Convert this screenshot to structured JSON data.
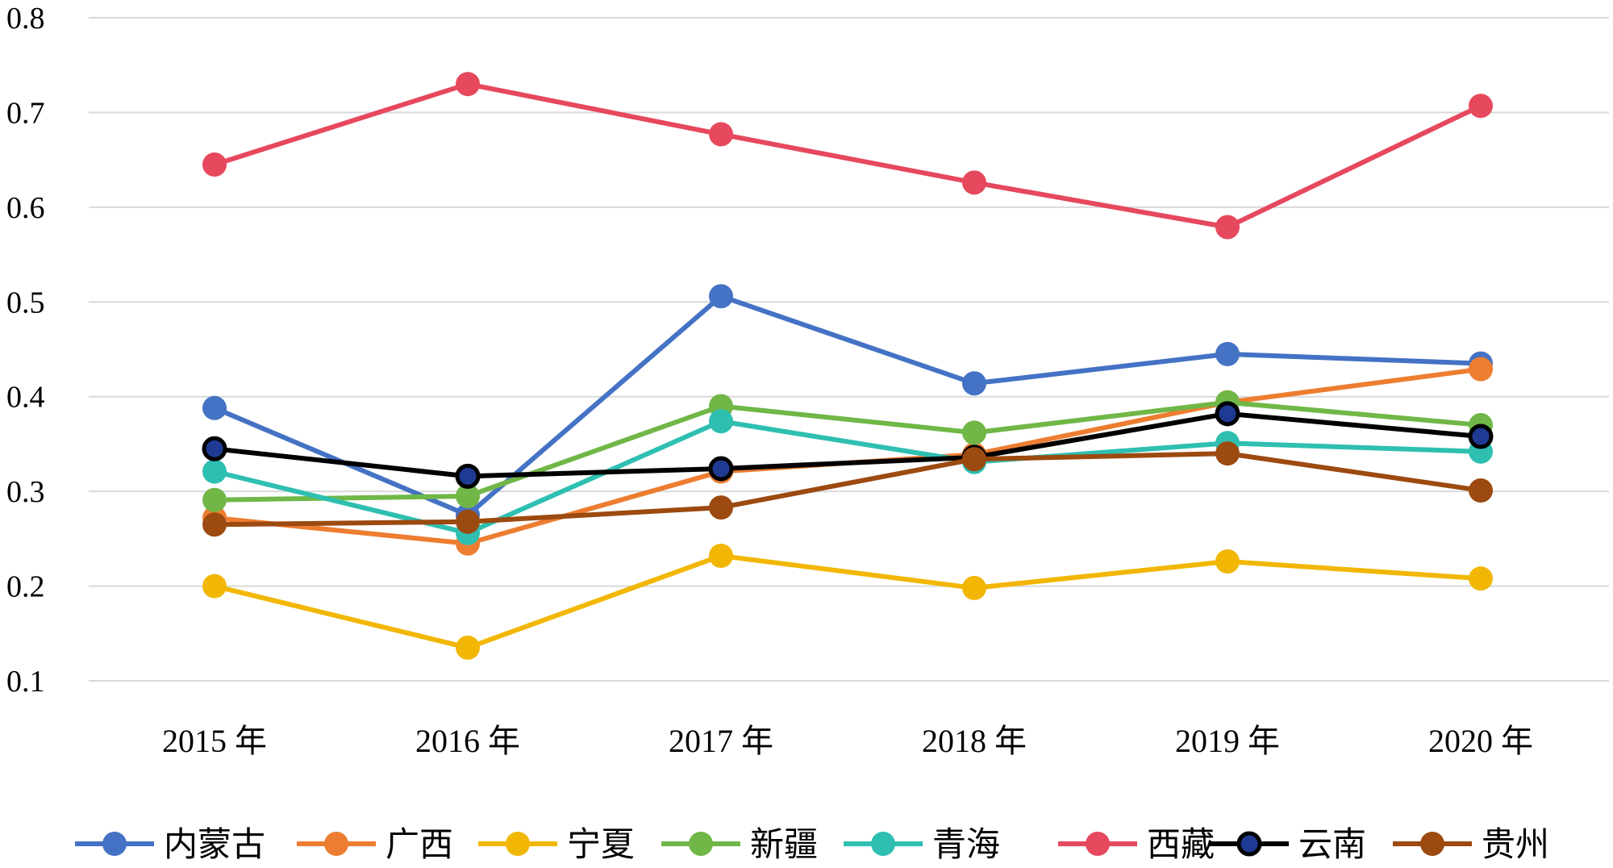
{
  "chart_data": {
    "type": "line",
    "title": "",
    "xlabel": "",
    "ylabel": "",
    "ylim": [
      0.1,
      0.8
    ],
    "yticks": [
      "0.1",
      "0.2",
      "0.3",
      "0.4",
      "0.5",
      "0.6",
      "0.7",
      "0.8"
    ],
    "grid": true,
    "legend_position": "bottom",
    "categories": [
      "2015 年",
      "2016 年",
      "2017 年",
      "2018 年",
      "2019 年",
      "2020 年"
    ],
    "series": [
      {
        "name": "内蒙古",
        "color": "#4472C4",
        "values": [
          0.388,
          0.275,
          0.506,
          0.414,
          0.445,
          0.435
        ]
      },
      {
        "name": "广西",
        "color": "#ED7D31",
        "values": [
          0.272,
          0.245,
          0.321,
          0.339,
          0.394,
          0.429
        ]
      },
      {
        "name": "宁夏",
        "color": "#F2B705",
        "values": [
          0.2,
          0.135,
          0.232,
          0.198,
          0.226,
          0.208
        ]
      },
      {
        "name": "新疆",
        "color": "#70B747",
        "values": [
          0.291,
          0.295,
          0.39,
          0.362,
          0.394,
          0.37
        ]
      },
      {
        "name": "青海",
        "color": "#2EBFB1",
        "values": [
          0.321,
          0.256,
          0.374,
          0.331,
          0.351,
          0.342
        ]
      },
      {
        "name": "西藏",
        "color": "#E6485E",
        "values": [
          0.645,
          0.73,
          0.677,
          0.626,
          0.579,
          0.707
        ]
      },
      {
        "name": "云南",
        "color": "#000000",
        "marker_fill": "#1F3A93",
        "values": [
          0.345,
          0.316,
          0.324,
          0.336,
          0.382,
          0.358
        ]
      },
      {
        "name": "贵州",
        "color": "#9C4A10",
        "values": [
          0.265,
          0.268,
          0.283,
          0.334,
          0.34,
          0.301
        ]
      }
    ]
  }
}
